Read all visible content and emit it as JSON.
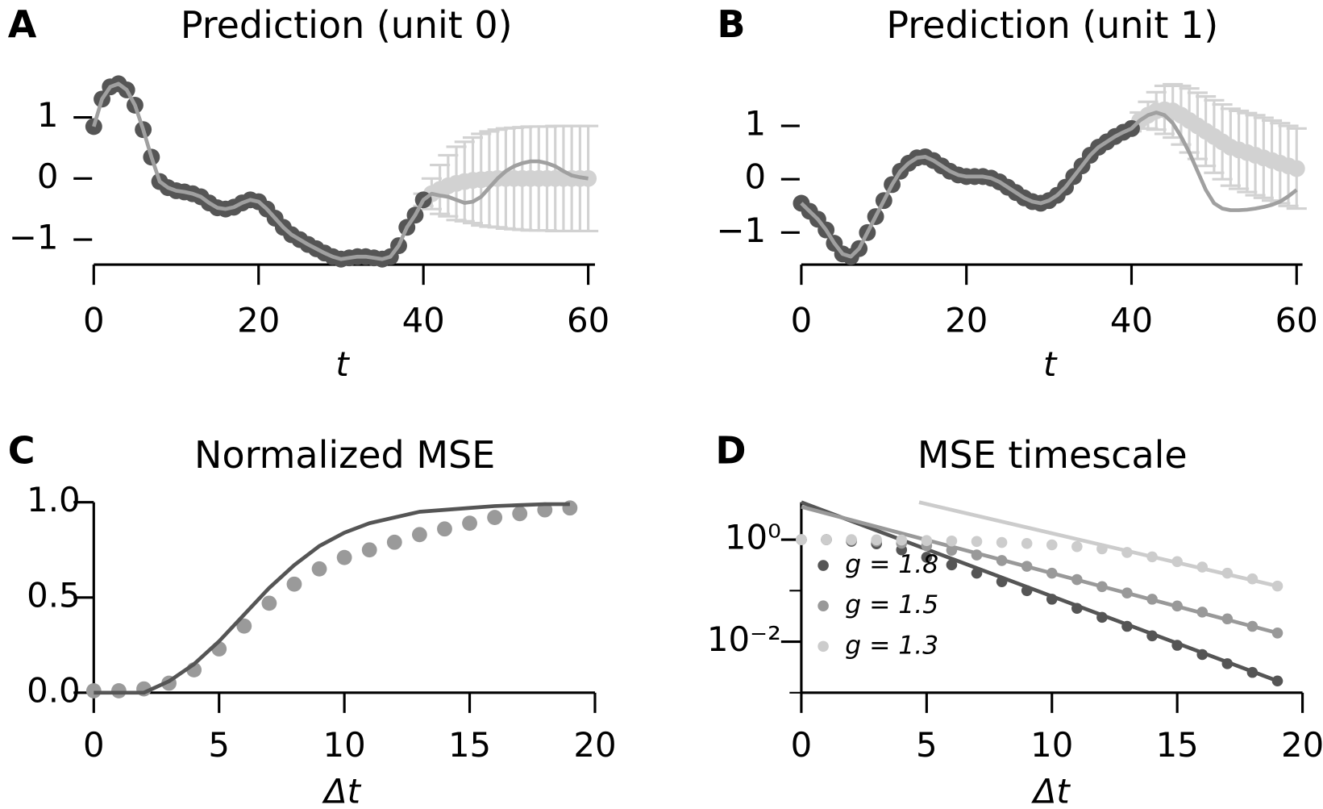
{
  "chart_data": [
    {
      "type": "line",
      "label": "A",
      "title": "Prediction (unit 0)",
      "xlabel": "t",
      "left_spine": false,
      "log_y": false,
      "xlim": [
        0,
        60
      ],
      "ylim": [
        -1.41,
        1.68
      ],
      "xticks": [
        0,
        20,
        40,
        60
      ],
      "yticks": [
        {
          "value": -1,
          "label": "−1"
        },
        0,
        1
      ],
      "series": [
        {
          "style": "errorbar",
          "color": "#d2d2d2",
          "x": [
            40,
            41,
            42,
            43,
            44,
            45,
            46,
            47,
            48,
            49,
            50,
            51,
            52,
            53,
            54,
            55,
            56,
            57,
            58,
            59,
            60
          ],
          "values": [
            -0.35,
            -0.25,
            -0.18,
            -0.12,
            -0.08,
            -0.05,
            -0.03,
            -0.02,
            -0.01,
            0,
            0,
            0,
            0,
            0,
            0,
            0,
            0,
            0,
            0,
            0,
            0
          ],
          "errors": [
            0.1,
            0.25,
            0.4,
            0.5,
            0.6,
            0.65,
            0.7,
            0.75,
            0.78,
            0.8,
            0.82,
            0.83,
            0.84,
            0.85,
            0.85,
            0.85,
            0.86,
            0.86,
            0.86,
            0.86,
            0.86
          ]
        },
        {
          "style": "dots",
          "color": "#d2d2d2",
          "x": [
            40,
            41,
            42,
            43,
            44,
            45,
            46,
            47,
            48,
            49,
            50,
            51,
            52,
            53,
            54,
            55,
            56,
            57,
            58,
            59,
            60
          ],
          "values": [
            -0.35,
            -0.25,
            -0.18,
            -0.12,
            -0.08,
            -0.05,
            -0.03,
            -0.02,
            -0.01,
            0,
            0,
            0,
            0,
            0,
            0,
            0,
            0,
            0,
            0,
            0,
            0
          ]
        },
        {
          "style": "dots",
          "color": "#555555",
          "x": [
            0,
            1,
            2,
            3,
            4,
            5,
            6,
            7,
            8,
            9,
            10,
            11,
            12,
            13,
            14,
            15,
            16,
            17,
            18,
            19,
            20,
            21,
            22,
            23,
            24,
            25,
            26,
            27,
            28,
            29,
            30,
            31,
            32,
            33,
            34,
            35,
            36,
            37,
            38,
            39,
            40
          ],
          "values": [
            0.85,
            1.3,
            1.5,
            1.55,
            1.45,
            1.2,
            0.8,
            0.35,
            -0.05,
            -0.15,
            -0.2,
            -0.22,
            -0.25,
            -0.3,
            -0.4,
            -0.48,
            -0.5,
            -0.47,
            -0.4,
            -0.35,
            -0.38,
            -0.5,
            -0.65,
            -0.8,
            -0.92,
            -1.0,
            -1.08,
            -1.15,
            -1.22,
            -1.28,
            -1.32,
            -1.3,
            -1.28,
            -1.28,
            -1.3,
            -1.32,
            -1.28,
            -1.1,
            -0.8,
            -0.6,
            -0.35
          ]
        },
        {
          "style": "line",
          "color": "#a0a0a0",
          "x": [
            0,
            1,
            2,
            3,
            4,
            5,
            6,
            7,
            8,
            9,
            10,
            11,
            12,
            13,
            14,
            15,
            16,
            17,
            18,
            19,
            20,
            21,
            22,
            23,
            24,
            25,
            26,
            27,
            28,
            29,
            30,
            31,
            32,
            33,
            34,
            35,
            36,
            37,
            38,
            39,
            40,
            41,
            42,
            43,
            44,
            45,
            46,
            47,
            48,
            49,
            50,
            51,
            52,
            53,
            54,
            55,
            56,
            57,
            58,
            59,
            60
          ],
          "values": [
            0.85,
            1.3,
            1.5,
            1.55,
            1.45,
            1.2,
            0.8,
            0.35,
            -0.05,
            -0.15,
            -0.2,
            -0.22,
            -0.25,
            -0.3,
            -0.4,
            -0.48,
            -0.5,
            -0.47,
            -0.4,
            -0.35,
            -0.38,
            -0.5,
            -0.65,
            -0.8,
            -0.92,
            -1.0,
            -1.08,
            -1.15,
            -1.22,
            -1.28,
            -1.32,
            -1.3,
            -1.28,
            -1.28,
            -1.3,
            -1.32,
            -1.28,
            -1.1,
            -0.8,
            -0.6,
            -0.35,
            -0.25,
            -0.28,
            -0.3,
            -0.35,
            -0.4,
            -0.38,
            -0.3,
            -0.15,
            0.0,
            0.12,
            0.2,
            0.25,
            0.28,
            0.28,
            0.25,
            0.2,
            0.12,
            0.05,
            0.02,
            0
          ]
        }
      ]
    },
    {
      "type": "line",
      "label": "B",
      "title": "Prediction (unit 1)",
      "xlabel": "t",
      "left_spine": false,
      "log_y": false,
      "xlim": [
        0,
        60
      ],
      "ylim": [
        -1.6,
        2.0
      ],
      "xticks": [
        0,
        20,
        40,
        60
      ],
      "yticks": [
        {
          "value": -1,
          "label": "−1"
        },
        0,
        1
      ],
      "series": [
        {
          "style": "errorbar",
          "color": "#d2d2d2",
          "x": [
            40,
            41,
            42,
            43,
            44,
            45,
            46,
            47,
            48,
            49,
            50,
            51,
            52,
            53,
            54,
            55,
            56,
            57,
            58,
            59,
            60
          ],
          "values": [
            0.95,
            1.1,
            1.2,
            1.28,
            1.3,
            1.28,
            1.2,
            1.1,
            1.0,
            0.9,
            0.8,
            0.7,
            0.6,
            0.55,
            0.5,
            0.45,
            0.4,
            0.35,
            0.3,
            0.25,
            0.2
          ],
          "errors": [
            0.05,
            0.15,
            0.25,
            0.35,
            0.45,
            0.5,
            0.55,
            0.6,
            0.62,
            0.65,
            0.68,
            0.7,
            0.72,
            0.73,
            0.74,
            0.75,
            0.75,
            0.75,
            0.75,
            0.75,
            0.75
          ]
        },
        {
          "style": "dots",
          "color": "#d2d2d2",
          "x": [
            40,
            41,
            42,
            43,
            44,
            45,
            46,
            47,
            48,
            49,
            50,
            51,
            52,
            53,
            54,
            55,
            56,
            57,
            58,
            59,
            60
          ],
          "values": [
            0.95,
            1.1,
            1.2,
            1.28,
            1.3,
            1.28,
            1.2,
            1.1,
            1.0,
            0.9,
            0.8,
            0.7,
            0.6,
            0.55,
            0.5,
            0.45,
            0.4,
            0.35,
            0.3,
            0.25,
            0.2
          ]
        },
        {
          "style": "dots",
          "color": "#555555",
          "x": [
            0,
            1,
            2,
            3,
            4,
            5,
            6,
            7,
            8,
            9,
            10,
            11,
            12,
            13,
            14,
            15,
            16,
            17,
            18,
            19,
            20,
            21,
            22,
            23,
            24,
            25,
            26,
            27,
            28,
            29,
            30,
            31,
            32,
            33,
            34,
            35,
            36,
            37,
            38,
            39,
            40
          ],
          "values": [
            -0.45,
            -0.6,
            -0.75,
            -0.95,
            -1.2,
            -1.4,
            -1.45,
            -1.3,
            -1.0,
            -0.7,
            -0.4,
            -0.1,
            0.15,
            0.3,
            0.4,
            0.42,
            0.35,
            0.25,
            0.15,
            0.08,
            0.05,
            0.05,
            0.05,
            0.02,
            -0.05,
            -0.15,
            -0.25,
            -0.35,
            -0.42,
            -0.45,
            -0.4,
            -0.3,
            -0.15,
            0.05,
            0.25,
            0.45,
            0.6,
            0.7,
            0.8,
            0.88,
            0.95
          ]
        },
        {
          "style": "line",
          "color": "#a0a0a0",
          "x": [
            0,
            1,
            2,
            3,
            4,
            5,
            6,
            7,
            8,
            9,
            10,
            11,
            12,
            13,
            14,
            15,
            16,
            17,
            18,
            19,
            20,
            21,
            22,
            23,
            24,
            25,
            26,
            27,
            28,
            29,
            30,
            31,
            32,
            33,
            34,
            35,
            36,
            37,
            38,
            39,
            40,
            41,
            42,
            43,
            44,
            45,
            46,
            47,
            48,
            49,
            50,
            51,
            52,
            53,
            54,
            55,
            56,
            57,
            58,
            59,
            60
          ],
          "values": [
            -0.45,
            -0.6,
            -0.75,
            -0.95,
            -1.2,
            -1.4,
            -1.45,
            -1.3,
            -1.0,
            -0.7,
            -0.4,
            -0.1,
            0.15,
            0.3,
            0.4,
            0.42,
            0.35,
            0.25,
            0.15,
            0.08,
            0.05,
            0.05,
            0.05,
            0.02,
            -0.05,
            -0.15,
            -0.25,
            -0.35,
            -0.42,
            -0.45,
            -0.4,
            -0.3,
            -0.15,
            0.05,
            0.25,
            0.45,
            0.6,
            0.7,
            0.8,
            0.88,
            0.95,
            1.1,
            1.2,
            1.25,
            1.2,
            1.05,
            0.8,
            0.5,
            0.15,
            -0.2,
            -0.45,
            -0.55,
            -0.58,
            -0.58,
            -0.57,
            -0.55,
            -0.52,
            -0.48,
            -0.42,
            -0.32,
            -0.2
          ]
        }
      ]
    },
    {
      "type": "scatter",
      "label": "C",
      "title": "Normalized MSE",
      "xlabel": "Δt",
      "left_spine": true,
      "log_y": false,
      "xlim": [
        0,
        20
      ],
      "ylim": [
        0,
        1
      ],
      "xticks": [
        0,
        5,
        10,
        15,
        20
      ],
      "yticks": [
        {
          "value": 0,
          "label": "0.0"
        },
        0.5,
        {
          "value": 1,
          "label": "1.0"
        }
      ],
      "series": [
        {
          "style": "dots",
          "color": "#9a9a9a",
          "x": [
            0,
            1,
            2,
            3,
            4,
            5,
            6,
            7,
            8,
            9,
            10,
            11,
            12,
            13,
            14,
            15,
            16,
            17,
            18,
            19
          ],
          "values": [
            0.01,
            0.01,
            0.02,
            0.05,
            0.12,
            0.23,
            0.35,
            0.47,
            0.57,
            0.65,
            0.71,
            0.75,
            0.79,
            0.83,
            0.86,
            0.89,
            0.92,
            0.94,
            0.96,
            0.97
          ]
        },
        {
          "style": "line",
          "color": "#555555",
          "x": [
            0,
            1,
            2,
            3,
            4,
            5,
            6,
            7,
            8,
            9,
            10,
            11,
            12,
            13,
            14,
            15,
            16,
            17,
            18,
            19
          ],
          "values": [
            0,
            0,
            0,
            0.06,
            0.15,
            0.27,
            0.41,
            0.55,
            0.67,
            0.77,
            0.84,
            0.89,
            0.92,
            0.95,
            0.96,
            0.97,
            0.98,
            0.985,
            0.99,
            0.99
          ]
        }
      ]
    },
    {
      "type": "scatter",
      "label": "D",
      "title": "MSE timescale",
      "xlabel": "Δt",
      "left_spine": true,
      "log_y": true,
      "legend": "center left",
      "xlim": [
        0,
        20
      ],
      "ylim": [
        0.001,
        5.4
      ],
      "xticks": [
        0,
        5,
        10,
        15,
        20
      ],
      "yticks": [
        {
          "value": 0.01,
          "label": "10⁻²"
        },
        {
          "value": 1,
          "label": "10⁰"
        }
      ],
      "yminorticks": [
        0.001,
        0.1
      ],
      "series": [
        {
          "style": "line",
          "color": "#555555",
          "x": [
            0,
            19
          ],
          "values": [
            5.4,
            0.0017
          ]
        },
        {
          "style": "line",
          "color": "#999999",
          "x": [
            0,
            19
          ],
          "values": [
            4.4,
            0.0148
          ]
        },
        {
          "style": "line",
          "color": "#cccccc",
          "x": [
            4.7,
            19
          ],
          "values": [
            5.4,
            0.123
          ]
        },
        {
          "style": "dots",
          "name": "g = 1.8",
          "color": "#555555",
          "x": [
            0,
            1,
            2,
            3,
            4,
            5,
            6,
            7,
            8,
            9,
            10,
            11,
            12,
            13,
            14,
            15,
            16,
            17,
            18,
            19
          ],
          "values": [
            1,
            1,
            0.93,
            0.83,
            0.63,
            0.45,
            0.32,
            0.22,
            0.15,
            0.1,
            0.068,
            0.045,
            0.03,
            0.02,
            0.013,
            0.0085,
            0.0056,
            0.0037,
            0.0025,
            0.0017
          ]
        },
        {
          "style": "dots",
          "name": "g = 1.5",
          "color": "#999999",
          "x": [
            0,
            1,
            2,
            3,
            4,
            5,
            6,
            7,
            8,
            9,
            10,
            11,
            12,
            13,
            14,
            15,
            16,
            17,
            18,
            19
          ],
          "values": [
            1,
            1,
            0.97,
            0.93,
            0.85,
            0.76,
            0.62,
            0.5,
            0.39,
            0.3,
            0.22,
            0.165,
            0.12,
            0.09,
            0.068,
            0.05,
            0.038,
            0.028,
            0.02,
            0.0148
          ]
        },
        {
          "style": "dots",
          "name": "g = 1.3",
          "color": "#cccccc",
          "x": [
            0,
            1,
            2,
            3,
            4,
            5,
            6,
            7,
            8,
            9,
            10,
            11,
            12,
            13,
            14,
            15,
            16,
            17,
            18,
            19
          ],
          "values": [
            1,
            1,
            1,
            0.99,
            0.98,
            0.96,
            0.94,
            0.92,
            0.88,
            0.84,
            0.79,
            0.73,
            0.66,
            0.56,
            0.46,
            0.37,
            0.29,
            0.22,
            0.17,
            0.123
          ]
        }
      ]
    }
  ]
}
